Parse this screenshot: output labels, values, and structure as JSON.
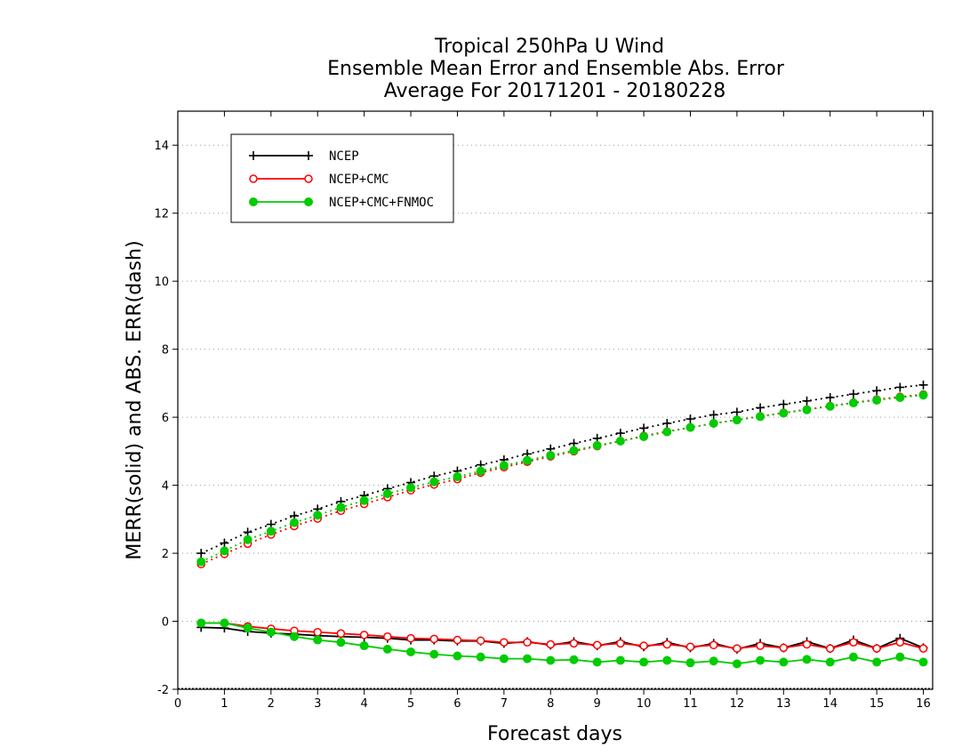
{
  "chart_data": {
    "type": "line",
    "title": [
      "Tropical 250hPa U Wind",
      "Ensemble Mean Error and Ensemble Abs. Error",
      "Average For 20171201 - 20180228"
    ],
    "xlabel": "Forecast days",
    "ylabel": "MERR(solid) and ABS. ERR(dash)",
    "xlim": [
      0,
      16.2
    ],
    "ylim": [
      -2,
      15
    ],
    "xticks": [
      0,
      1,
      2,
      3,
      4,
      5,
      6,
      7,
      8,
      9,
      10,
      11,
      12,
      13,
      14,
      15,
      16
    ],
    "yticks": [
      -2,
      0,
      2,
      4,
      6,
      8,
      10,
      12,
      14
    ],
    "ytick_labels": [
      "-2",
      "0",
      "2",
      "4",
      "6",
      "8",
      "10",
      "12",
      "14"
    ],
    "grid": true,
    "legend_position": "top-left",
    "x": [
      0.5,
      1,
      1.5,
      2,
      2.5,
      3,
      3.5,
      4,
      4.5,
      5,
      5.5,
      6,
      6.5,
      7,
      7.5,
      8,
      8.5,
      9,
      9.5,
      10,
      10.5,
      11,
      11.5,
      12,
      12.5,
      13,
      13.5,
      14,
      14.5,
      15,
      15.5,
      16
    ],
    "series": [
      {
        "name": "NCEP",
        "color": "#000000",
        "marker": "plus",
        "merr": [
          -0.18,
          -0.2,
          -0.3,
          -0.35,
          -0.38,
          -0.42,
          -0.45,
          -0.47,
          -0.5,
          -0.55,
          -0.55,
          -0.58,
          -0.58,
          -0.65,
          -0.6,
          -0.7,
          -0.6,
          -0.72,
          -0.6,
          -0.75,
          -0.62,
          -0.78,
          -0.65,
          -0.82,
          -0.65,
          -0.78,
          -0.6,
          -0.8,
          -0.55,
          -0.8,
          -0.5,
          -0.78
        ],
        "abs_err": [
          2.0,
          2.3,
          2.62,
          2.85,
          3.1,
          3.3,
          3.52,
          3.7,
          3.9,
          4.08,
          4.27,
          4.42,
          4.6,
          4.75,
          4.92,
          5.07,
          5.23,
          5.38,
          5.53,
          5.68,
          5.82,
          5.95,
          6.07,
          6.15,
          6.28,
          6.38,
          6.48,
          6.58,
          6.68,
          6.78,
          6.88,
          6.95
        ]
      },
      {
        "name": "NCEP+CMC",
        "color": "#ff0000",
        "marker": "open-circle",
        "merr": [
          -0.05,
          -0.05,
          -0.15,
          -0.22,
          -0.28,
          -0.32,
          -0.36,
          -0.4,
          -0.45,
          -0.5,
          -0.52,
          -0.55,
          -0.57,
          -0.62,
          -0.62,
          -0.68,
          -0.65,
          -0.7,
          -0.65,
          -0.72,
          -0.68,
          -0.75,
          -0.7,
          -0.8,
          -0.72,
          -0.78,
          -0.68,
          -0.8,
          -0.62,
          -0.8,
          -0.62,
          -0.8
        ],
        "abs_err": [
          1.68,
          1.98,
          2.28,
          2.55,
          2.8,
          3.02,
          3.25,
          3.45,
          3.65,
          3.85,
          4.02,
          4.18,
          4.37,
          4.53,
          4.69,
          4.85,
          5.0,
          5.15,
          5.3,
          5.45,
          5.58,
          5.7,
          5.82,
          5.92,
          6.03,
          6.13,
          6.23,
          6.33,
          6.43,
          6.52,
          6.6,
          6.67
        ]
      },
      {
        "name": "NCEP+CMC+FNMOC",
        "color": "#00cc00",
        "marker": "filled-circle",
        "merr": [
          -0.05,
          -0.05,
          -0.2,
          -0.32,
          -0.45,
          -0.55,
          -0.62,
          -0.72,
          -0.82,
          -0.9,
          -0.97,
          -1.02,
          -1.05,
          -1.1,
          -1.1,
          -1.15,
          -1.13,
          -1.2,
          -1.15,
          -1.2,
          -1.15,
          -1.22,
          -1.17,
          -1.25,
          -1.15,
          -1.2,
          -1.12,
          -1.2,
          -1.05,
          -1.2,
          -1.05,
          -1.2
        ],
        "abs_err": [
          1.75,
          2.07,
          2.4,
          2.65,
          2.9,
          3.12,
          3.35,
          3.55,
          3.75,
          3.93,
          4.1,
          4.25,
          4.42,
          4.58,
          4.73,
          4.88,
          5.02,
          5.17,
          5.3,
          5.43,
          5.57,
          5.7,
          5.82,
          5.92,
          6.02,
          6.12,
          6.22,
          6.32,
          6.42,
          6.5,
          6.58,
          6.65
        ]
      }
    ]
  }
}
